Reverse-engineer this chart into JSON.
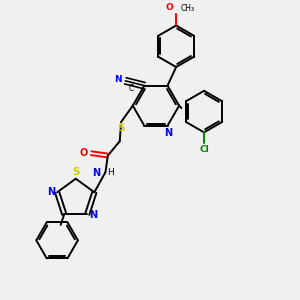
{
  "bg_color": "#f0f0f0",
  "bond_color": "#000000",
  "bond_width": 1.4,
  "figsize": [
    3.0,
    3.0
  ],
  "dpi": 100,
  "colors": {
    "N": "#0000ff",
    "O": "#ff0000",
    "S": "#cccc00",
    "Cl": "#008800",
    "C": "#000000"
  }
}
